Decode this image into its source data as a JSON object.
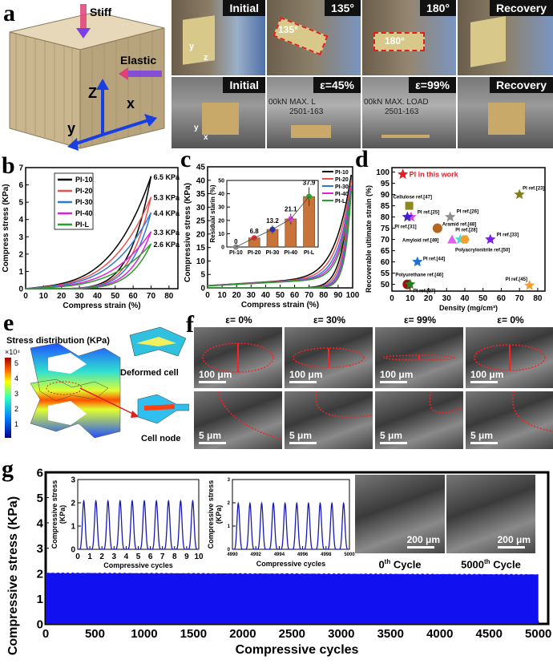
{
  "panel_labels": {
    "a": "a",
    "b": "b",
    "c": "c",
    "d": "d",
    "e": "e",
    "f": "f",
    "g": "g"
  },
  "panel_a": {
    "cube_labels": {
      "stiff": "Stiff",
      "elastic": "Elastic",
      "z": "Z",
      "x": "x",
      "y": "y"
    },
    "top_row": [
      "Initial",
      "135°",
      "180°",
      "Recovery"
    ],
    "bottom_row": [
      "Initial",
      "ε=45%",
      "ε=99%",
      "Recovery"
    ],
    "angle_annotations": [
      "135°",
      "180°"
    ],
    "photo_axes": {
      "y": "y",
      "z": "z",
      "x": "x"
    },
    "machine_text": [
      "00kN MAX. L",
      "2501-163",
      "00kN MAX. LOAD",
      "2501-163"
    ],
    "colors": {
      "stiff_arrow": "#e0407a",
      "elastic_arrow": "#7b3fe4",
      "axes": "#1a3fe0"
    }
  },
  "panel_e": {
    "title": "Stress distribution (KPa)",
    "scale_exp": "×10⁴",
    "colorbar_ticks": [
      "5",
      "4",
      "3",
      "2",
      "1"
    ],
    "deformed_label": "Deformed cell",
    "node_label": "Cell node"
  },
  "panel_f": {
    "columns": [
      "ε= 0%",
      "ε= 30%",
      "ε= 99%",
      "ε= 0%"
    ],
    "scale_top": "100 μm",
    "scale_bottom": "5 μm"
  },
  "chart_data": [
    {
      "id": "b",
      "type": "line",
      "xlabel": "Compress strain (%)",
      "ylabel": "Compress stress (KPa)",
      "xlim": [
        0,
        85
      ],
      "ylim": [
        0,
        7
      ],
      "xticks": [
        0,
        10,
        20,
        30,
        40,
        50,
        60,
        70,
        80
      ],
      "yticks": [
        0,
        1,
        2,
        3,
        4,
        5,
        6,
        7
      ],
      "legend": "top-left",
      "max_strain": 70,
      "series": [
        {
          "name": "PI-10",
          "color": "#000000",
          "peak": 6.5,
          "peak_label": "6.5 KPa"
        },
        {
          "name": "PI-20",
          "color": "#e8524f",
          "peak": 5.3,
          "peak_label": "5.3 KPa"
        },
        {
          "name": "PI-30",
          "color": "#2b7bd6",
          "peak": 4.4,
          "peak_label": "4.4 KPa"
        },
        {
          "name": "PI-40",
          "color": "#e020e0",
          "peak": 3.3,
          "peak_label": "3.3 KPa"
        },
        {
          "name": "PI-L",
          "color": "#2a9d2a",
          "peak": 2.6,
          "peak_label": "2.6 KPa"
        }
      ]
    },
    {
      "id": "c",
      "type": "line",
      "xlabel": "Compress strain (%)",
      "ylabel": "Compressive stress (KPa)",
      "xlim": [
        0,
        100
      ],
      "ylim": [
        0,
        45
      ],
      "xticks": [
        0,
        10,
        20,
        30,
        40,
        50,
        60,
        70,
        80,
        90,
        100
      ],
      "yticks": [
        0,
        5,
        10,
        15,
        20,
        25,
        30,
        35,
        40,
        45
      ],
      "legend": "top-right",
      "max_strain": 99,
      "series": [
        {
          "name": "PI-10",
          "color": "#000000",
          "peak": 42
        },
        {
          "name": "PI-20",
          "color": "#e8524f",
          "peak": 40
        },
        {
          "name": "PI-30",
          "color": "#2b7bd6",
          "peak": 38
        },
        {
          "name": "PI-40",
          "color": "#e020e0",
          "peak": 37
        },
        {
          "name": "PI-L",
          "color": "#2a9d2a",
          "peak": 36
        }
      ],
      "inset": {
        "type": "bar",
        "ylabel": "Residual starin (%)",
        "ylim": [
          0,
          50
        ],
        "yticks": [
          0,
          10,
          20,
          30,
          40,
          50
        ],
        "categories": [
          "PI-10",
          "PI-20",
          "PI-30",
          "PI-40",
          "PI-L"
        ],
        "values": [
          0,
          6.8,
          13.2,
          21.1,
          37.9
        ],
        "value_labels": [
          "0",
          "6.8",
          "13.2",
          "21.1",
          "37.9"
        ],
        "errors": [
          0.5,
          1.5,
          3,
          4,
          7
        ],
        "marker_colors": [
          "#888888",
          "#e03030",
          "#2030c0",
          "#e040e0",
          "#30a030"
        ],
        "bar_color": "#c8733a"
      }
    },
    {
      "id": "d",
      "type": "scatter",
      "xlabel": "Density (mg/cm³)",
      "ylabel": "Recoverable ultimate strain (%)",
      "xlim": [
        0,
        84
      ],
      "ylim": [
        47,
        102
      ],
      "xticks": [
        0,
        10,
        20,
        30,
        40,
        50,
        60,
        70,
        80
      ],
      "yticks": [
        50,
        55,
        60,
        65,
        70,
        75,
        80,
        85,
        90,
        95,
        100
      ],
      "points": [
        {
          "label": "PI in this work",
          "x": 6,
          "y": 99,
          "marker": "star",
          "color": "#e81e25"
        },
        {
          "label": "Cellulose ref.[47]",
          "x": 9.5,
          "y": 85,
          "marker": "square",
          "color": "#8a8a20"
        },
        {
          "label": "PI ref.[25]",
          "x": 10.5,
          "y": 80,
          "marker": "star",
          "color": "#e040e0"
        },
        {
          "label": "PI ref.[31]",
          "x": 8.5,
          "y": 80,
          "marker": "star",
          "color": "#4020d0"
        },
        {
          "label": "PI ref.[26]",
          "x": 32,
          "y": 80,
          "marker": "star",
          "color": "#909090"
        },
        {
          "label": "Aramid ref.[48]",
          "x": 25,
          "y": 75,
          "marker": "circle",
          "color": "#b5651d"
        },
        {
          "label": "PI ref.[28]",
          "x": 37.5,
          "y": 70,
          "marker": "star",
          "color": "#40e0e0"
        },
        {
          "label": "Amyloid ref.[49]",
          "x": 33,
          "y": 70,
          "marker": "triangle",
          "color": "#e060f0"
        },
        {
          "label": "Polyacrylonitrile ref.[50]",
          "x": 40,
          "y": 70,
          "marker": "hexagon",
          "color": "#f0a030"
        },
        {
          "label": "PI ref.[33]",
          "x": 54,
          "y": 70,
          "marker": "star",
          "color": "#7a20e0"
        },
        {
          "label": "PI ref.[44]",
          "x": 14,
          "y": 60,
          "marker": "star",
          "color": "#2070d0"
        },
        {
          "label": "Polyurethane ref.[46]",
          "x": 8.5,
          "y": 50,
          "marker": "circle",
          "color": "#a01010"
        },
        {
          "label": "PI ref.[27]",
          "x": 10,
          "y": 50,
          "marker": "star",
          "color": "#208020"
        },
        {
          "label": "PI ref.[23]",
          "x": 70,
          "y": 90,
          "marker": "star",
          "color": "#808020"
        },
        {
          "label": "PI ref.[45]",
          "x": 75.5,
          "y": 49.5,
          "marker": "star",
          "color": "#f0a030"
        }
      ]
    },
    {
      "id": "g",
      "type": "area",
      "xlabel": "Compressive cycles",
      "ylabel": "Compressive stress (KPa)",
      "xlim": [
        0,
        5100
      ],
      "ylim": [
        0,
        6
      ],
      "xticks": [
        0,
        500,
        1000,
        1500,
        2000,
        2500,
        3000,
        3500,
        4000,
        4500,
        5000
      ],
      "yticks": [
        0,
        1,
        2,
        3,
        4,
        5,
        6
      ],
      "color": "#1010f0",
      "band": {
        "x": [
          0,
          5000
        ],
        "y_max_start": 2.02,
        "y_max_end": 1.96
      },
      "insets": [
        {
          "type": "line",
          "xlabel": "Compressive cycles",
          "ylabel": [
            "Compressive stress",
            "(KPa)"
          ],
          "xlim": [
            0,
            10
          ],
          "ylim": [
            0,
            3
          ],
          "xticks": [
            0,
            1,
            2,
            3,
            4,
            5,
            6,
            7,
            8,
            9,
            10
          ],
          "yticks": [
            0,
            1,
            2,
            3
          ],
          "cycles": 10,
          "peak": 2.08,
          "color": "#1a1ab0"
        },
        {
          "type": "line",
          "xlabel": "Compressive cycles",
          "ylabel": [
            "Compressive stress",
            "(KPa)"
          ],
          "xlim": [
            4990,
            5000
          ],
          "ylim": [
            0,
            3
          ],
          "xticks": [
            4990,
            4992,
            4994,
            4996,
            4998,
            5000
          ],
          "yticks": [
            0,
            1,
            2,
            3
          ],
          "cycles": 10,
          "peak": 1.98,
          "color": "#1a1ab0"
        }
      ],
      "sem_images": [
        {
          "caption": "0",
          "sup": "th",
          "suffix": " Cycle",
          "scale": "200 μm"
        },
        {
          "caption": "5000",
          "sup": "th",
          "suffix": " Cycle",
          "scale": "200 μm"
        }
      ]
    }
  ]
}
